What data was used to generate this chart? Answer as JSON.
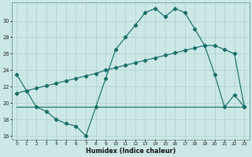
{
  "xlabel": "Humidex (Indice chaleur)",
  "bg_color": "#cce8e6",
  "line_color": "#1a6e6a",
  "grid_color": "#aacfcc",
  "xlim": [
    -0.5,
    23.5
  ],
  "ylim": [
    15.5,
    32.2
  ],
  "yticks": [
    16,
    18,
    20,
    22,
    24,
    26,
    28,
    30
  ],
  "xticks": [
    0,
    1,
    2,
    3,
    4,
    5,
    6,
    7,
    8,
    9,
    10,
    11,
    12,
    13,
    14,
    15,
    16,
    17,
    18,
    19,
    20,
    21,
    22,
    23
  ],
  "curve1_x": [
    0,
    1,
    2,
    3,
    4,
    5,
    6,
    7,
    8,
    9,
    10,
    11,
    12,
    13,
    14,
    15,
    16,
    17,
    18,
    19,
    20,
    21,
    22,
    23
  ],
  "curve1_y": [
    23.5,
    21.5,
    19.5,
    19.0,
    18.0,
    17.5,
    17.2,
    16.0,
    19.5,
    23.0,
    26.5,
    28.0,
    29.5,
    31.0,
    31.5,
    30.5,
    31.5,
    31.0,
    29.0,
    27.0,
    23.5,
    19.5,
    21.0,
    19.5
  ],
  "curve2_x": [
    0,
    1,
    2,
    3,
    4,
    5,
    6,
    7,
    8,
    9,
    10,
    11,
    12,
    13,
    14,
    15,
    16,
    17,
    18,
    19,
    20,
    21,
    22,
    23
  ],
  "curve2_y": [
    19.5,
    19.5,
    19.5,
    19.5,
    19.5,
    19.5,
    19.5,
    19.5,
    19.5,
    19.5,
    19.5,
    19.5,
    19.5,
    19.5,
    19.5,
    19.5,
    19.5,
    19.5,
    19.5,
    19.5,
    19.5,
    19.5,
    19.5,
    19.5
  ],
  "curve3_x": [
    0,
    1,
    2,
    3,
    4,
    5,
    6,
    7,
    8,
    9,
    10,
    11,
    12,
    13,
    14,
    15,
    16,
    17,
    18,
    19,
    20,
    21,
    22,
    23
  ],
  "curve3_y": [
    21.2,
    21.5,
    21.8,
    22.1,
    22.4,
    22.7,
    23.0,
    23.3,
    23.6,
    24.0,
    24.3,
    24.6,
    24.9,
    25.2,
    25.5,
    25.8,
    26.1,
    26.4,
    26.7,
    27.0,
    27.0,
    26.5,
    26.0,
    19.5
  ]
}
